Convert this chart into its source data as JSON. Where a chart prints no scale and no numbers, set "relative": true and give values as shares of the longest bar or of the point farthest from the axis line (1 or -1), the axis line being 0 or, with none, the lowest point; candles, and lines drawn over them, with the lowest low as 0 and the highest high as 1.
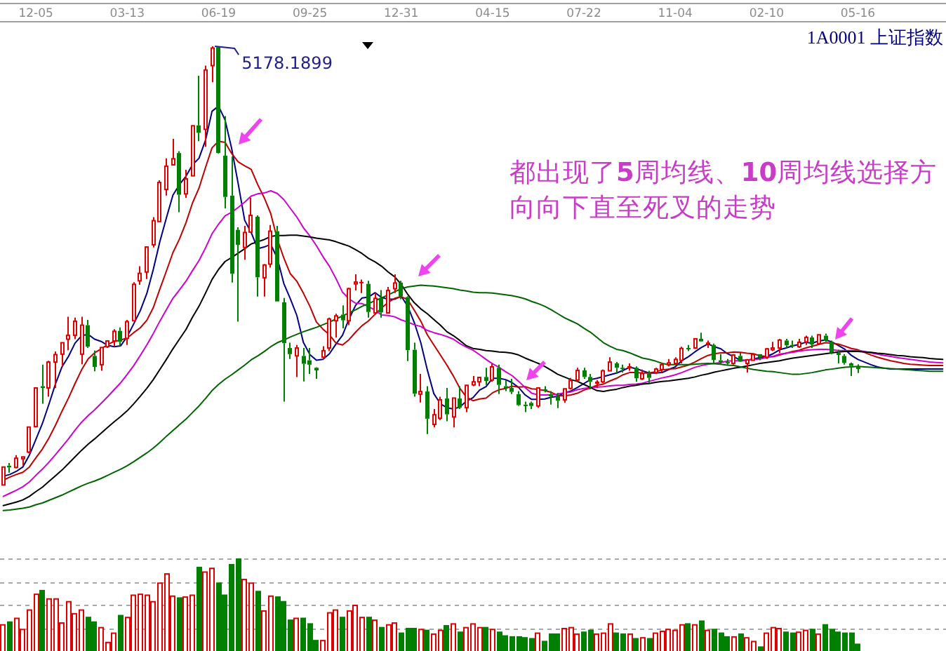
{
  "chart_data": [
    {
      "type": "candlestick",
      "title": "1A0001 上证指数",
      "relative": true,
      "categories": [
        null,
        null,
        null,
        null,
        null,
        "12-05",
        null,
        null,
        null,
        null,
        null,
        null,
        null,
        null,
        null,
        null,
        null,
        null,
        null,
        "03-13",
        null,
        null,
        null,
        null,
        null,
        null,
        null,
        null,
        null,
        null,
        null,
        null,
        null,
        "06-19",
        null,
        null,
        null,
        null,
        null,
        null,
        null,
        null,
        null,
        null,
        null,
        null,
        null,
        "09-25",
        null,
        null,
        null,
        null,
        null,
        null,
        null,
        null,
        null,
        null,
        null,
        null,
        null,
        "12-31",
        null,
        null,
        null,
        null,
        null,
        null,
        null,
        null,
        null,
        null,
        null,
        null,
        null,
        "04-15",
        null,
        null,
        null,
        null,
        null,
        null,
        null,
        null,
        null,
        null,
        null,
        null,
        null,
        "07-22",
        null,
        null,
        null,
        null,
        null,
        null,
        null,
        null,
        null,
        null,
        null,
        null,
        null,
        "11-04",
        null,
        null,
        null,
        null,
        null,
        null,
        null,
        null,
        null,
        null,
        null,
        null,
        null,
        "02-10",
        null,
        null,
        null,
        null,
        null,
        null,
        null,
        null,
        null,
        null,
        null,
        null,
        null,
        "05-16",
        null,
        null,
        null,
        null,
        null,
        null,
        null,
        null,
        null,
        null,
        null,
        null,
        null
      ],
      "ohlc": [
        [
          0.001,
          0.043,
          0,
          0.042
        ],
        [
          0.045,
          0.051,
          0.029,
          0.041
        ],
        [
          0.041,
          0.069,
          0.039,
          0.062
        ],
        [
          0.061,
          0.065,
          0.045,
          0.065
        ],
        [
          0.076,
          0.133,
          0.073,
          0.133
        ],
        [
          0.134,
          0.222,
          0.132,
          0.222
        ],
        [
          0.226,
          0.275,
          0.186,
          0.222
        ],
        [
          0.222,
          0.284,
          0.202,
          0.281
        ],
        [
          0.281,
          0.305,
          0.222,
          0.298
        ],
        [
          0.299,
          0.326,
          0.271,
          0.325
        ],
        [
          0.333,
          0.384,
          0.308,
          0.342
        ],
        [
          0.342,
          0.382,
          0.333,
          0.374
        ],
        [
          0.299,
          0.384,
          0.276,
          0.365
        ],
        [
          0.365,
          0.377,
          0.313,
          0.316
        ],
        [
          0.295,
          0.307,
          0.26,
          0.27
        ],
        [
          0.275,
          0.315,
          0.261,
          0.314
        ],
        [
          0.316,
          0.329,
          0.313,
          0.329
        ],
        [
          0.329,
          0.356,
          0.316,
          0.351
        ],
        [
          0.352,
          0.36,
          0.318,
          0.327
        ],
        [
          0.335,
          0.377,
          0.32,
          0.373
        ],
        [
          0.375,
          0.463,
          0.375,
          0.458
        ],
        [
          0.466,
          0.499,
          0.457,
          0.483
        ],
        [
          0.486,
          0.544,
          0.47,
          0.543
        ],
        [
          0.548,
          0.611,
          0.542,
          0.603
        ],
        [
          0.601,
          0.695,
          0.601,
          0.69
        ],
        [
          0.674,
          0.745,
          0.66,
          0.727
        ],
        [
          0.73,
          0.789,
          0.73,
          0.744
        ],
        [
          0.757,
          0.761,
          0.622,
          0.662
        ],
        [
          0.664,
          0.719,
          0.655,
          0.698
        ],
        [
          0.705,
          0.819,
          0.705,
          0.819
        ],
        [
          0.82,
          0.933,
          0.784,
          0.803
        ],
        [
          0.811,
          0.956,
          0.771,
          0.946
        ],
        [
          0.956,
          1,
          0.918,
          0.996
        ],
        [
          0.998,
          0.999,
          0.756,
          0.757
        ],
        [
          0.751,
          0.841,
          0.631,
          0.657
        ],
        [
          0.66,
          0.749,
          0.462,
          0.482
        ],
        [
          0.582,
          0.588,
          0.373,
          0.548
        ],
        [
          0.542,
          0.591,
          0.514,
          0.576
        ],
        [
          0.577,
          0.655,
          0.577,
          0.615
        ],
        [
          0.612,
          0.615,
          0.43,
          0.474
        ],
        [
          0.473,
          0.504,
          0.43,
          0.502
        ],
        [
          0.504,
          0.593,
          0.496,
          0.579
        ],
        [
          0.579,
          0.591,
          0.419,
          0.419
        ],
        [
          0.417,
          0.427,
          0.191,
          0.324
        ],
        [
          0.313,
          0.325,
          0.288,
          0.299
        ],
        [
          0.295,
          0.32,
          0.247,
          0.313
        ],
        [
          0.295,
          0.313,
          0.237,
          0.277
        ],
        [
          0.285,
          0.313,
          0.254,
          0.275
        ],
        [
          0.268,
          0.269,
          0.243,
          0.262
        ],
        [
          0.292,
          0.317,
          0.288,
          0.307
        ],
        [
          0.313,
          0.382,
          0.306,
          0.379
        ],
        [
          0.375,
          0.391,
          0.337,
          0.386
        ],
        [
          0.389,
          0.41,
          0.358,
          0.376
        ],
        [
          0.375,
          0.45,
          0.365,
          0.448
        ],
        [
          0.459,
          0.481,
          0.444,
          0.463
        ],
        [
          0.462,
          0.469,
          0.438,
          0.462
        ],
        [
          0.459,
          0.466,
          0.382,
          0.395
        ],
        [
          0.393,
          0.438,
          0.389,
          0.426
        ],
        [
          0.427,
          0.445,
          0.382,
          0.394
        ],
        [
          0.393,
          0.452,
          0.393,
          0.444
        ],
        [
          0.448,
          0.481,
          0.438,
          0.461
        ],
        [
          0.462,
          0.466,
          0.424,
          0.431
        ],
        [
          0.429,
          0.431,
          0.283,
          0.308
        ],
        [
          0.309,
          0.325,
          0.202,
          0.209
        ],
        [
          0.208,
          0.254,
          0.189,
          0.214
        ],
        [
          0.214,
          0.226,
          0.117,
          0.152
        ],
        [
          0.139,
          0.174,
          0.132,
          0.161
        ],
        [
          0.153,
          0.202,
          0.149,
          0.195
        ],
        [
          0.198,
          0.222,
          0.146,
          0.162
        ],
        [
          0.156,
          0.199,
          0.132,
          0.199
        ],
        [
          0.198,
          0.226,
          0.174,
          0.177
        ],
        [
          0.177,
          0.229,
          0.167,
          0.228
        ],
        [
          0.229,
          0.249,
          0.226,
          0.236
        ],
        [
          0.236,
          0.247,
          0.226,
          0.246
        ],
        [
          0.247,
          0.268,
          0.229,
          0.238
        ],
        [
          0.24,
          0.277,
          0.236,
          0.27
        ],
        [
          0.268,
          0.275,
          0.208,
          0.229
        ],
        [
          0.226,
          0.24,
          0.215,
          0.222
        ],
        [
          0.222,
          0.243,
          0.208,
          0.213
        ],
        [
          0.208,
          0.215,
          0.181,
          0.183
        ],
        [
          0.184,
          0.191,
          0.167,
          0.183
        ],
        [
          0.188,
          0.191,
          0.174,
          0.181
        ],
        [
          0.181,
          0.222,
          0.177,
          0.222
        ],
        [
          0.219,
          0.226,
          0.212,
          0.218
        ],
        [
          0.208,
          0.215,
          0.184,
          0.203
        ],
        [
          0.203,
          0.211,
          0.176,
          0.193
        ],
        [
          0.195,
          0.221,
          0.188,
          0.22
        ],
        [
          0.221,
          0.245,
          0.219,
          0.239
        ],
        [
          0.24,
          0.268,
          0.236,
          0.262
        ],
        [
          0.262,
          0.268,
          0.243,
          0.247
        ],
        [
          0.247,
          0.254,
          0.219,
          0.236
        ],
        [
          0.233,
          0.24,
          0.222,
          0.235
        ],
        [
          0.236,
          0.264,
          0.233,
          0.261
        ],
        [
          0.261,
          0.292,
          0.261,
          0.281
        ],
        [
          0.278,
          0.281,
          0.254,
          0.268
        ],
        [
          0.268,
          0.275,
          0.257,
          0.267
        ],
        [
          0.268,
          0.278,
          0.261,
          0.27
        ],
        [
          0.268,
          0.271,
          0.236,
          0.244
        ],
        [
          0.243,
          0.264,
          0.24,
          0.255
        ],
        [
          0.254,
          0.261,
          0.233,
          0.245
        ],
        [
          0.257,
          0.268,
          0.254,
          0.265
        ],
        [
          0.264,
          0.278,
          0.257,
          0.275
        ],
        [
          0.275,
          0.288,
          0.271,
          0.279
        ],
        [
          0.278,
          0.292,
          0.275,
          0.287
        ],
        [
          0.285,
          0.316,
          0.278,
          0.312
        ],
        [
          0.313,
          0.32,
          0.306,
          0.31
        ],
        [
          0.313,
          0.335,
          0.311,
          0.334
        ],
        [
          0.334,
          0.348,
          0.327,
          0.328
        ],
        [
          0.323,
          0.33,
          0.313,
          0.324
        ],
        [
          0.32,
          0.323,
          0.278,
          0.286
        ],
        [
          0.285,
          0.299,
          0.275,
          0.281
        ],
        [
          0.281,
          0.288,
          0.275,
          0.279
        ],
        [
          0.278,
          0.299,
          0.275,
          0.297
        ],
        [
          0.295,
          0.302,
          0.281,
          0.282
        ],
        [
          0.278,
          0.288,
          0.257,
          0.286
        ],
        [
          0.285,
          0.299,
          0.285,
          0.298
        ],
        [
          0.299,
          0.299,
          0.285,
          0.292
        ],
        [
          0.292,
          0.313,
          0.288,
          0.311
        ],
        [
          0.309,
          0.327,
          0.306,
          0.313
        ],
        [
          0.313,
          0.334,
          0.302,
          0.331
        ],
        [
          0.33,
          0.334,
          0.313,
          0.319
        ],
        [
          0.32,
          0.33,
          0.313,
          0.317
        ],
        [
          0.316,
          0.334,
          0.313,
          0.326
        ],
        [
          0.327,
          0.341,
          0.32,
          0.337
        ],
        [
          0.337,
          0.341,
          0.313,
          0.321
        ],
        [
          0.323,
          0.344,
          0.323,
          0.343
        ],
        [
          0.341,
          0.346,
          0.327,
          0.329
        ],
        [
          0.327,
          0.33,
          0.299,
          0.303
        ],
        [
          0.302,
          0.309,
          0.278,
          0.297
        ],
        [
          0.295,
          0.299,
          0.275,
          0.279
        ],
        [
          0.278,
          0.28,
          0.249,
          0.272
        ],
        [
          0.271,
          0.276,
          0.256,
          0.265
        ],
        null,
        null,
        null,
        null,
        null,
        null,
        null,
        null,
        null,
        null,
        null,
        null,
        null
      ],
      "colors": [
        "#e00000",
        "#008000",
        "#e00000",
        "#e00000",
        "#e00000",
        "#e00000",
        "#008000",
        "#e00000",
        "#e00000",
        "#e00000",
        "#e00000",
        "#e00000",
        "#e00000",
        "#008000",
        "#008000",
        "#e00000",
        "#e00000",
        "#e00000",
        "#008000",
        "#e00000",
        "#e00000",
        "#e00000",
        "#e00000",
        "#e00000",
        "#e00000",
        "#e00000",
        "#e00000",
        "#008000",
        "#e00000",
        "#e00000",
        "#008000",
        "#e00000",
        "#e00000",
        "#008000",
        "#008000",
        "#008000",
        "#008000",
        "#e00000",
        "#e00000",
        "#008000",
        "#e00000",
        "#e00000",
        "#008000",
        "#008000",
        "#008000",
        "#e00000",
        "#008000",
        "#008000",
        "#008000",
        "#e00000",
        "#e00000",
        "#e00000",
        "#008000",
        "#e00000",
        "#e00000",
        "#e00000",
        "#008000",
        "#e00000",
        "#008000",
        "#e00000",
        "#e00000",
        "#008000",
        "#008000",
        "#008000",
        "#e00000",
        "#008000",
        "#e00000",
        "#e00000",
        "#008000",
        "#e00000",
        "#008000",
        "#e00000",
        "#e00000",
        "#e00000",
        "#008000",
        "#e00000",
        "#008000",
        "#008000",
        "#008000",
        "#008000",
        "#008000",
        "#008000",
        "#e00000",
        "#008000",
        "#008000",
        "#008000",
        "#e00000",
        "#e00000",
        "#e00000",
        "#008000",
        "#008000",
        "#e00000",
        "#e00000",
        "#e00000",
        "#008000",
        "#008000",
        "#e00000",
        "#008000",
        "#e00000",
        "#008000",
        "#e00000",
        "#e00000",
        "#e00000",
        "#e00000",
        "#e00000",
        "#008000",
        "#e00000",
        "#008000",
        "#e00000",
        "#008000",
        "#008000",
        "#008000",
        "#e00000",
        "#008000",
        "#e00000",
        "#e00000",
        "#008000",
        "#e00000",
        "#e00000",
        "#e00000",
        "#008000",
        "#008000",
        "#e00000",
        "#e00000",
        "#008000",
        "#e00000",
        "#008000",
        "#008000",
        "#008000",
        "#008000",
        "#008000",
        "#008000",
        null,
        null,
        null,
        null,
        null,
        null,
        null,
        null,
        null,
        null,
        null,
        null,
        null
      ],
      "series": [
        {
          "type": "line",
          "color": "#000080",
          "values": [
            0.021,
            0.025,
            0.032,
            0.042,
            0.069,
            0.105,
            0.141,
            0.185,
            0.231,
            0.27,
            0.294,
            0.324,
            0.341,
            0.344,
            0.333,
            0.328,
            0.319,
            0.316,
            0.318,
            0.339,
            0.368,
            0.398,
            0.437,
            0.492,
            0.555,
            0.609,
            0.661,
            0.685,
            0.704,
            0.73,
            0.745,
            0.786,
            0.852,
            0.864,
            0.832,
            0.768,
            0.688,
            0.604,
            0.576,
            0.539,
            0.543,
            0.549,
            0.518,
            0.46,
            0.425,
            0.387,
            0.326,
            0.298,
            0.285,
            0.287,
            0.3,
            0.322,
            0.342,
            0.379,
            0.41,
            0.427,
            0.429,
            0.439,
            0.428,
            0.424,
            0.424,
            0.431,
            0.408,
            0.371,
            0.325,
            0.263,
            0.209,
            0.186,
            0.177,
            0.174,
            0.179,
            0.192,
            0.2,
            0.217,
            0.225,
            0.244,
            0.244,
            0.241,
            0.234,
            0.223,
            0.206,
            0.196,
            0.196,
            0.197,
            0.201,
            0.203,
            0.211,
            0.215,
            0.223,
            0.232,
            0.241,
            0.244,
            0.248,
            0.252,
            0.256,
            0.262,
            0.269,
            0.266,
            0.261,
            0.256,
            0.256,
            0.257,
            0.264,
            0.27,
            0.284,
            0.293,
            0.304,
            0.314,
            0.322,
            0.316,
            0.311,
            0.3,
            0.293,
            0.285,
            0.285,
            0.288,
            0.291,
            0.294,
            0.3,
            0.309,
            0.313,
            0.318,
            0.321,
            0.326,
            0.324,
            0.329,
            0.331,
            0.327,
            0.319,
            0.31,
            0.296,
            0.287,
            0.281,
            0.275,
            0.27,
            0.267,
            0.265,
            0.265,
            0.265,
            0.265,
            0.265,
            0.265,
            0.265,
            0.265,
            0.265
          ]
        },
        {
          "type": "line",
          "color": "#c00000",
          "values": [
            0.012,
            0.019,
            0.025,
            0.03,
            0.042,
            0.063,
            0.083,
            0.108,
            0.137,
            0.169,
            0.199,
            0.232,
            0.263,
            0.288,
            0.302,
            0.311,
            0.321,
            0.328,
            0.331,
            0.336,
            0.348,
            0.359,
            0.376,
            0.405,
            0.447,
            0.488,
            0.53,
            0.561,
            0.598,
            0.643,
            0.677,
            0.724,
            0.769,
            0.784,
            0.781,
            0.756,
            0.737,
            0.728,
            0.72,
            0.685,
            0.655,
            0.619,
            0.561,
            0.518,
            0.482,
            0.465,
            0.438,
            0.408,
            0.372,
            0.356,
            0.343,
            0.324,
            0.32,
            0.332,
            0.349,
            0.364,
            0.375,
            0.39,
            0.404,
            0.417,
            0.426,
            0.43,
            0.423,
            0.399,
            0.374,
            0.343,
            0.32,
            0.297,
            0.274,
            0.249,
            0.221,
            0.201,
            0.193,
            0.197,
            0.199,
            0.211,
            0.218,
            0.221,
            0.226,
            0.224,
            0.225,
            0.22,
            0.219,
            0.216,
            0.212,
            0.205,
            0.204,
            0.206,
            0.21,
            0.217,
            0.222,
            0.228,
            0.231,
            0.238,
            0.244,
            0.252,
            0.257,
            0.257,
            0.256,
            0.256,
            0.259,
            0.263,
            0.265,
            0.266,
            0.27,
            0.274,
            0.281,
            0.289,
            0.296,
            0.3,
            0.302,
            0.302,
            0.304,
            0.303,
            0.301,
            0.3,
            0.295,
            0.294,
            0.293,
            0.297,
            0.301,
            0.305,
            0.308,
            0.313,
            0.317,
            0.321,
            0.325,
            0.324,
            0.322,
            0.317,
            0.312,
            0.309,
            0.303,
            0.297,
            0.292,
            0.288,
            0.284,
            0.281,
            0.278,
            0.276,
            0.275,
            0.274,
            0.273,
            0.273,
            0.273
          ]
        },
        {
          "type": "line",
          "color": "#d000d0",
          "values": [
            -0.025,
            -0.018,
            -0.011,
            -0.003,
            0.008,
            0.023,
            0.037,
            0.053,
            0.07,
            0.088,
            0.106,
            0.126,
            0.144,
            0.159,
            0.172,
            0.187,
            0.202,
            0.218,
            0.234,
            0.253,
            0.273,
            0.296,
            0.32,
            0.346,
            0.374,
            0.4,
            0.426,
            0.445,
            0.465,
            0.489,
            0.512,
            0.541,
            0.573,
            0.595,
            0.614,
            0.622,
            0.633,
            0.645,
            0.659,
            0.664,
            0.666,
            0.671,
            0.665,
            0.651,
            0.631,
            0.611,
            0.587,
            0.568,
            0.546,
            0.521,
            0.499,
            0.471,
            0.44,
            0.425,
            0.415,
            0.414,
            0.407,
            0.399,
            0.388,
            0.387,
            0.384,
            0.377,
            0.372,
            0.366,
            0.362,
            0.353,
            0.348,
            0.344,
            0.339,
            0.333,
            0.323,
            0.315,
            0.308,
            0.298,
            0.287,
            0.277,
            0.269,
            0.259,
            0.25,
            0.237,
            0.223,
            0.21,
            0.206,
            0.206,
            0.206,
            0.208,
            0.211,
            0.213,
            0.218,
            0.221,
            0.223,
            0.224,
            0.225,
            0.227,
            0.228,
            0.228,
            0.23,
            0.231,
            0.233,
            0.237,
            0.241,
            0.245,
            0.248,
            0.252,
            0.257,
            0.263,
            0.269,
            0.273,
            0.276,
            0.278,
            0.28,
            0.283,
            0.284,
            0.284,
            0.285,
            0.287,
            0.288,
            0.291,
            0.294,
            0.299,
            0.301,
            0.303,
            0.306,
            0.308,
            0.309,
            0.31,
            0.31,
            0.309,
            0.307,
            0.307,
            0.307,
            0.307,
            0.305,
            0.302,
            0.299,
            0.296,
            0.294,
            0.291,
            0.289,
            0.287,
            0.285,
            0.283,
            0.281,
            0.28,
            0.279
          ]
        },
        {
          "type": "line",
          "color": "#000000",
          "values": [
            -0.046,
            -0.042,
            -0.038,
            -0.033,
            -0.025,
            -0.014,
            -0.004,
            0.009,
            0.022,
            0.035,
            0.05,
            0.065,
            0.08,
            0.094,
            0.106,
            0.119,
            0.132,
            0.145,
            0.157,
            0.17,
            0.186,
            0.203,
            0.221,
            0.241,
            0.264,
            0.287,
            0.311,
            0.333,
            0.355,
            0.383,
            0.408,
            0.438,
            0.469,
            0.492,
            0.51,
            0.519,
            0.529,
            0.539,
            0.55,
            0.555,
            0.56,
            0.567,
            0.569,
            0.569,
            0.57,
            0.57,
            0.568,
            0.566,
            0.563,
            0.561,
            0.559,
            0.555,
            0.55,
            0.545,
            0.537,
            0.528,
            0.517,
            0.509,
            0.499,
            0.486,
            0.475,
            0.458,
            0.435,
            0.416,
            0.402,
            0.391,
            0.378,
            0.365,
            0.35,
            0.341,
            0.33,
            0.318,
            0.312,
            0.31,
            0.307,
            0.306,
            0.304,
            0.303,
            0.301,
            0.297,
            0.29,
            0.284,
            0.278,
            0.271,
            0.262,
            0.253,
            0.247,
            0.241,
            0.237,
            0.23,
            0.223,
            0.216,
            0.214,
            0.217,
            0.219,
            0.223,
            0.226,
            0.228,
            0.231,
            0.232,
            0.235,
            0.237,
            0.238,
            0.24,
            0.242,
            0.244,
            0.247,
            0.251,
            0.254,
            0.258,
            0.261,
            0.264,
            0.267,
            0.269,
            0.272,
            0.275,
            0.278,
            0.28,
            0.282,
            0.284,
            0.287,
            0.29,
            0.292,
            0.294,
            0.296,
            0.298,
            0.3,
            0.302,
            0.304,
            0.305,
            0.305,
            0.305,
            0.304,
            0.303,
            0.301,
            0.3,
            0.298,
            0.296,
            0.295,
            0.293,
            0.292,
            0.291,
            0.289,
            0.288,
            0.287
          ]
        },
        {
          "type": "line",
          "color": "#006400",
          "values": [
            -0.057,
            -0.056,
            -0.054,
            -0.052,
            -0.049,
            -0.044,
            -0.04,
            -0.034,
            -0.028,
            -0.022,
            -0.015,
            -0.008,
            -0.001,
            0.005,
            0.01,
            0.016,
            0.023,
            0.03,
            0.037,
            0.045,
            0.054,
            0.064,
            0.074,
            0.085,
            0.098,
            0.112,
            0.125,
            0.138,
            0.151,
            0.166,
            0.181,
            0.198,
            0.216,
            0.23,
            0.242,
            0.252,
            0.263,
            0.274,
            0.286,
            0.295,
            0.305,
            0.316,
            0.325,
            0.331,
            0.338,
            0.344,
            0.35,
            0.355,
            0.36,
            0.366,
            0.372,
            0.379,
            0.386,
            0.393,
            0.4,
            0.408,
            0.414,
            0.421,
            0.427,
            0.434,
            0.441,
            0.448,
            0.452,
            0.454,
            0.456,
            0.455,
            0.454,
            0.452,
            0.45,
            0.448,
            0.445,
            0.443,
            0.44,
            0.439,
            0.439,
            0.438,
            0.436,
            0.434,
            0.432,
            0.429,
            0.425,
            0.419,
            0.414,
            0.408,
            0.4,
            0.391,
            0.382,
            0.375,
            0.368,
            0.358,
            0.349,
            0.337,
            0.325,
            0.317,
            0.31,
            0.307,
            0.302,
            0.296,
            0.29,
            0.287,
            0.283,
            0.278,
            0.275,
            0.275,
            0.275,
            0.275,
            0.276,
            0.277,
            0.278,
            0.277,
            0.276,
            0.274,
            0.273,
            0.27,
            0.267,
            0.264,
            0.262,
            0.26,
            0.259,
            0.257,
            0.255,
            0.253,
            0.253,
            0.255,
            0.257,
            0.26,
            0.263,
            0.265,
            0.267,
            0.269,
            0.27,
            0.271,
            0.27,
            0.269,
            0.268,
            0.267,
            0.266,
            0.265,
            0.264,
            0.263,
            0.262,
            0.261,
            0.26,
            0.26,
            0.26
          ]
        }
      ],
      "annotations": [
        "都出现了5周均线、10周均线选择方向向下直至死叉的走势",
        "5178.1899"
      ]
    },
    {
      "type": "bar",
      "relative": true,
      "grid": "y",
      "categories": [
        null,
        null,
        null,
        null,
        null,
        null,
        null,
        null,
        null,
        null,
        null,
        null,
        null,
        null,
        null,
        null,
        null,
        null,
        null,
        null,
        null,
        null,
        null,
        null,
        null,
        null,
        null,
        null,
        null,
        null,
        null,
        null,
        null,
        null,
        null,
        null,
        null,
        null,
        null,
        null,
        null,
        null,
        null,
        null,
        null,
        null,
        null,
        null,
        null,
        null,
        null,
        null,
        null,
        null,
        null,
        null,
        null,
        null,
        null,
        null,
        null,
        null,
        null,
        null,
        null,
        null,
        null,
        null,
        null,
        null,
        null,
        null,
        null,
        null,
        null,
        null,
        null,
        null,
        null,
        null,
        null,
        null,
        null,
        null,
        null,
        null,
        null,
        null,
        null,
        null,
        null,
        null,
        null,
        null,
        null,
        null,
        null,
        null,
        null,
        null,
        null,
        null,
        null,
        null,
        null,
        null,
        null,
        null,
        null,
        null,
        null,
        null,
        null,
        null,
        null,
        null,
        null,
        null,
        null,
        null,
        null,
        null,
        null,
        null,
        null,
        null,
        null,
        null,
        null,
        null,
        null,
        null,
        null,
        null,
        null,
        null,
        null,
        null,
        null,
        null,
        null,
        null,
        null,
        null,
        null
      ],
      "values": [
        0.29,
        0.32,
        0.36,
        0.24,
        0.45,
        0.62,
        0.66,
        0.57,
        0.57,
        0.31,
        0.54,
        0.41,
        0.45,
        0.37,
        0.32,
        0.26,
        0.1,
        0.2,
        0.39,
        0.37,
        0.61,
        0.62,
        0.61,
        0.54,
        0.74,
        0.84,
        0.6,
        0.58,
        0.59,
        0.61,
        0.91,
        0.86,
        0.9,
        0.74,
        0.61,
        0.94,
        1,
        0.78,
        0.74,
        0.65,
        0.44,
        0.6,
        0.59,
        0.54,
        0.34,
        0.36,
        0.36,
        0.3,
        0.12,
        0.12,
        0.42,
        0.45,
        0.37,
        0.44,
        0.5,
        0.37,
        0.37,
        0.34,
        0.26,
        0.29,
        0.31,
        0.2,
        0.25,
        0.25,
        0.24,
        0.23,
        0.19,
        0.23,
        0.28,
        0.3,
        0.21,
        0.26,
        0.3,
        0.26,
        0.26,
        0.24,
        0.21,
        0.17,
        0.16,
        0.16,
        0.15,
        0.14,
        0.2,
        0.11,
        0.19,
        0.19,
        0.25,
        0.26,
        0.19,
        0.21,
        0.23,
        0.19,
        0.2,
        0.3,
        0.2,
        0.19,
        0.19,
        0.14,
        0.15,
        0.14,
        0.2,
        0.22,
        0.24,
        0.23,
        0.29,
        0.3,
        0.29,
        0.33,
        0.23,
        0.24,
        0.2,
        0.16,
        0.16,
        0.19,
        0.15,
        0.11,
        0.05,
        0.2,
        0.26,
        0.25,
        0.21,
        0.2,
        0.21,
        0.23,
        0.24,
        0.19,
        0.29,
        0.24,
        0.21,
        0.2,
        0.2,
        0.08,
        null,
        null,
        null,
        null,
        null,
        null,
        null,
        null,
        null,
        null,
        null,
        null,
        null
      ],
      "colors": [
        "#e00000",
        "#008000",
        "#e00000",
        "#e00000",
        "#e00000",
        "#e00000",
        "#008000",
        "#e00000",
        "#e00000",
        "#e00000",
        "#e00000",
        "#e00000",
        "#e00000",
        "#008000",
        "#008000",
        "#e00000",
        "#e00000",
        "#e00000",
        "#008000",
        "#e00000",
        "#e00000",
        "#e00000",
        "#e00000",
        "#e00000",
        "#e00000",
        "#e00000",
        "#e00000",
        "#008000",
        "#e00000",
        "#e00000",
        "#008000",
        "#e00000",
        "#e00000",
        "#008000",
        "#008000",
        "#008000",
        "#008000",
        "#e00000",
        "#e00000",
        "#008000",
        "#e00000",
        "#e00000",
        "#008000",
        "#008000",
        "#008000",
        "#e00000",
        "#008000",
        "#008000",
        "#008000",
        "#e00000",
        "#e00000",
        "#e00000",
        "#008000",
        "#e00000",
        "#e00000",
        "#e00000",
        "#008000",
        "#e00000",
        "#008000",
        "#e00000",
        "#e00000",
        "#008000",
        "#008000",
        "#008000",
        "#e00000",
        "#008000",
        "#e00000",
        "#e00000",
        "#008000",
        "#e00000",
        "#008000",
        "#e00000",
        "#e00000",
        "#e00000",
        "#008000",
        "#e00000",
        "#008000",
        "#008000",
        "#008000",
        "#008000",
        "#008000",
        "#008000",
        "#e00000",
        "#008000",
        "#008000",
        "#008000",
        "#e00000",
        "#e00000",
        "#e00000",
        "#008000",
        "#008000",
        "#e00000",
        "#e00000",
        "#e00000",
        "#008000",
        "#008000",
        "#e00000",
        "#008000",
        "#e00000",
        "#008000",
        "#e00000",
        "#e00000",
        "#e00000",
        "#e00000",
        "#e00000",
        "#008000",
        "#e00000",
        "#008000",
        "#e00000",
        "#008000",
        "#008000",
        "#008000",
        "#e00000",
        "#008000",
        "#e00000",
        "#e00000",
        "#008000",
        "#e00000",
        "#e00000",
        "#e00000",
        "#008000",
        "#008000",
        "#e00000",
        "#e00000",
        "#008000",
        "#e00000",
        "#008000",
        "#008000",
        "#008000",
        "#008000",
        "#008000",
        "#008000",
        null,
        null,
        null,
        null,
        null,
        null,
        null,
        null,
        null,
        null,
        null,
        null,
        null
      ]
    }
  ]
}
